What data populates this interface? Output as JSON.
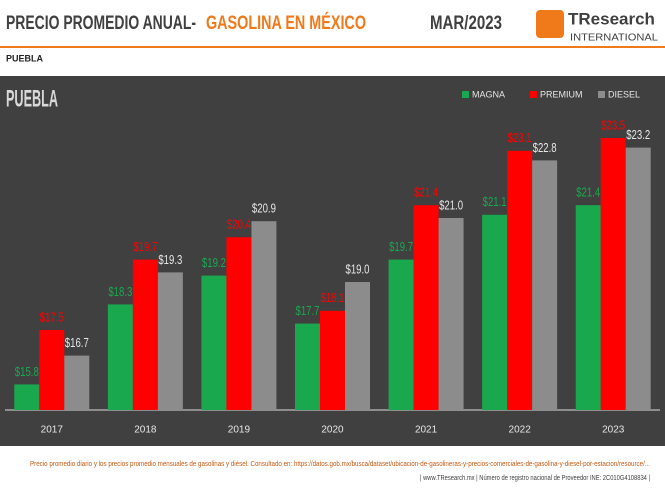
{
  "header": {
    "title": "PRECIO PROMEDIO ANUAL-",
    "title_highlight": "GASOLINA EN MÉXICO",
    "date": "MAR/2023",
    "logo": "TResearch",
    "logo_sub": "INTERNATIONAL",
    "region": "PUEBLA"
  },
  "chart_data": {
    "type": "bar",
    "title": "PUEBLA",
    "categories": [
      "2017",
      "2018",
      "2019",
      "2020",
      "2021",
      "2022",
      "2023"
    ],
    "series": [
      {
        "name": "MAGNA",
        "color": "#1aa84e",
        "values": [
          15.8,
          18.3,
          19.2,
          17.7,
          19.7,
          21.1,
          21.4
        ],
        "value_labels": [
          "$15.8",
          "$18.3",
          "$19.2",
          "$17.7",
          "$19.7",
          "$21.1",
          "$21.4"
        ]
      },
      {
        "name": "PREMIUM",
        "color": "#ff0000",
        "values": [
          17.5,
          19.7,
          20.4,
          18.1,
          21.4,
          23.1,
          23.5
        ],
        "value_labels": [
          "$17.5",
          "$19.7",
          "$20.4",
          "$18.1",
          "$21.4",
          "$23.1",
          "$23.5"
        ]
      },
      {
        "name": "DIESEL",
        "color": "#8c8c8c",
        "values": [
          16.7,
          19.3,
          20.9,
          19.0,
          21.0,
          22.8,
          23.2
        ],
        "value_labels": [
          "$16.7",
          "$19.3",
          "$20.9",
          "$19.0",
          "$21.0",
          "$22.8",
          "$23.2"
        ]
      }
    ],
    "ylim": [
      15,
      24
    ],
    "legend": "top-right"
  },
  "footer": {
    "source": "Precio promedio diario y los precios promedio mensuales de gasolinas y diésel. Consultado en: https://datos.gob.mx/busca/dataset/ubicacion-de-gasolineras-y-precios-comerciales-de-gasolina-y-diesel-por-estacion/resource/...",
    "credits": "| www.TResearch.mx | Número de registro nacional de Proveedor INE: 2C010G4108834 |"
  }
}
